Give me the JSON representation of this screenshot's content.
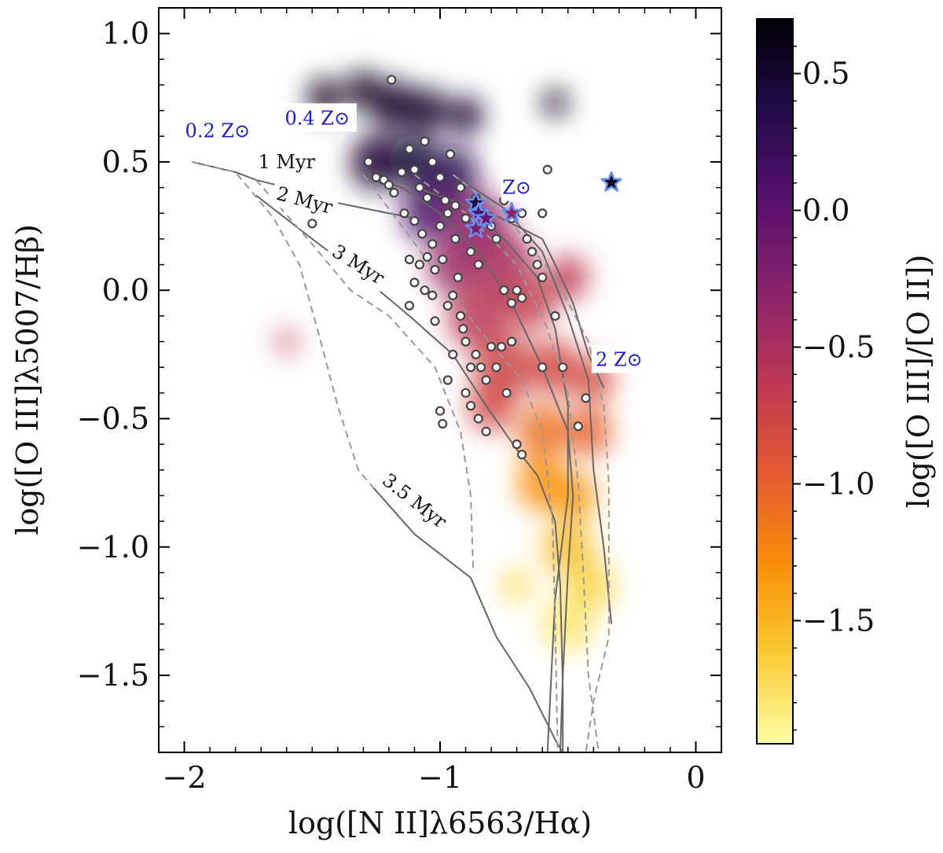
{
  "chart_data": {
    "type": "scatter",
    "title": "",
    "xlabel": "log([N II]λ6563/Hα)",
    "ylabel": "log([O III]λ5007/Hβ)",
    "xlim": [
      -2.1,
      0.1
    ],
    "ylim": [
      -1.8,
      1.1
    ],
    "x_ticks": [
      -2,
      -1,
      0
    ],
    "x_tick_labels": [
      "−2",
      "−1",
      "0"
    ],
    "y_ticks": [
      -1.5,
      -1.0,
      -0.5,
      0.0,
      0.5,
      1.0
    ],
    "y_tick_labels": [
      "−1.5",
      "−1.0",
      "−0.5",
      "0.0",
      "0.5",
      "1.0"
    ],
    "colorbar": {
      "label": "log([O III]/[O II])",
      "range": [
        -1.95,
        0.7
      ],
      "ticks": [
        -1.5,
        -1.0,
        -0.5,
        0.0,
        0.5
      ],
      "tick_labels": [
        "−1.5",
        "−1.0",
        "−0.5",
        "0.0",
        "0.5"
      ],
      "colormap": [
        "#fcfea4",
        "#f9c932",
        "#f98e09",
        "#e35932",
        "#bc3754",
        "#89226a",
        "#57106e",
        "#210c4a",
        "#000004"
      ]
    },
    "density_blobs": [
      {
        "x": -1.45,
        "y": 0.75,
        "c": 0.6,
        "r": 0.07
      },
      {
        "x": -1.3,
        "y": 0.78,
        "c": 0.6,
        "r": 0.07
      },
      {
        "x": -1.18,
        "y": 0.72,
        "c": 0.55,
        "r": 0.09
      },
      {
        "x": -1.05,
        "y": 0.7,
        "c": 0.55,
        "r": 0.08
      },
      {
        "x": -0.9,
        "y": 0.68,
        "c": 0.5,
        "r": 0.07
      },
      {
        "x": -0.55,
        "y": 0.73,
        "c": 0.6,
        "r": 0.05
      },
      {
        "x": -1.25,
        "y": 0.5,
        "c": 0.5,
        "r": 0.1
      },
      {
        "x": -1.1,
        "y": 0.5,
        "c": 0.45,
        "r": 0.1
      },
      {
        "x": -0.95,
        "y": 0.45,
        "c": 0.3,
        "r": 0.1
      },
      {
        "x": -1.05,
        "y": 0.3,
        "c": 0.1,
        "r": 0.1
      },
      {
        "x": -0.85,
        "y": 0.25,
        "c": -0.3,
        "r": 0.12
      },
      {
        "x": -0.75,
        "y": 0.1,
        "c": -0.5,
        "r": 0.12
      },
      {
        "x": -0.95,
        "y": 0.1,
        "c": -0.4,
        "r": 0.1
      },
      {
        "x": -0.85,
        "y": -0.1,
        "c": -0.6,
        "r": 0.12
      },
      {
        "x": -0.65,
        "y": -0.05,
        "c": -0.7,
        "r": 0.1
      },
      {
        "x": -0.5,
        "y": 0.05,
        "c": -0.65,
        "r": 0.08
      },
      {
        "x": -0.75,
        "y": -0.3,
        "c": -0.75,
        "r": 0.12
      },
      {
        "x": -0.55,
        "y": -0.3,
        "c": -0.8,
        "r": 0.1
      },
      {
        "x": -0.4,
        "y": -0.35,
        "c": -0.85,
        "r": 0.08
      },
      {
        "x": -0.8,
        "y": -0.45,
        "c": -0.8,
        "r": 0.09
      },
      {
        "x": -0.6,
        "y": -0.55,
        "c": -1.1,
        "r": 0.1
      },
      {
        "x": -0.42,
        "y": -0.55,
        "c": -1.0,
        "r": 0.09
      },
      {
        "x": -0.6,
        "y": -0.75,
        "c": -1.3,
        "r": 0.1
      },
      {
        "x": -0.48,
        "y": -0.8,
        "c": -1.35,
        "r": 0.09
      },
      {
        "x": -0.5,
        "y": -1.0,
        "c": -1.55,
        "r": 0.1
      },
      {
        "x": -0.42,
        "y": -1.15,
        "c": -1.7,
        "r": 0.1
      },
      {
        "x": -0.5,
        "y": -1.3,
        "c": -1.8,
        "r": 0.1
      },
      {
        "x": -0.7,
        "y": -1.15,
        "c": -1.75,
        "r": 0.06
      },
      {
        "x": -1.6,
        "y": -0.2,
        "c": -0.65,
        "r": 0.04
      }
    ],
    "galaxies": [
      {
        "x": -1.19,
        "y": 0.82
      },
      {
        "x": -1.28,
        "y": 0.5
      },
      {
        "x": -1.25,
        "y": 0.44
      },
      {
        "x": -1.22,
        "y": 0.43
      },
      {
        "x": -1.2,
        "y": 0.41
      },
      {
        "x": -1.18,
        "y": 0.38
      },
      {
        "x": -1.15,
        "y": 0.46
      },
      {
        "x": -1.12,
        "y": 0.55
      },
      {
        "x": -1.1,
        "y": 0.47
      },
      {
        "x": -1.08,
        "y": 0.4
      },
      {
        "x": -1.06,
        "y": 0.58
      },
      {
        "x": -1.05,
        "y": 0.36
      },
      {
        "x": -1.03,
        "y": 0.5
      },
      {
        "x": -1.0,
        "y": 0.44
      },
      {
        "x": -0.98,
        "y": 0.35
      },
      {
        "x": -0.96,
        "y": 0.53
      },
      {
        "x": -1.14,
        "y": 0.3
      },
      {
        "x": -1.1,
        "y": 0.27
      },
      {
        "x": -1.07,
        "y": 0.22
      },
      {
        "x": -1.03,
        "y": 0.18
      },
      {
        "x": -1.0,
        "y": 0.25
      },
      {
        "x": -0.97,
        "y": 0.3
      },
      {
        "x": -0.94,
        "y": 0.2
      },
      {
        "x": -0.92,
        "y": 0.4
      },
      {
        "x": -1.12,
        "y": 0.12
      },
      {
        "x": -1.08,
        "y": 0.1
      },
      {
        "x": -1.05,
        "y": 0.13
      },
      {
        "x": -1.02,
        "y": 0.08
      },
      {
        "x": -0.99,
        "y": 0.12
      },
      {
        "x": -1.1,
        "y": 0.03
      },
      {
        "x": -1.06,
        "y": 0.0
      },
      {
        "x": -1.03,
        "y": -0.02
      },
      {
        "x": -1.5,
        "y": 0.26
      },
      {
        "x": -1.12,
        "y": -0.06
      },
      {
        "x": -1.02,
        "y": -0.12
      },
      {
        "x": -0.97,
        "y": -0.06
      },
      {
        "x": -0.95,
        "y": -0.02
      },
      {
        "x": -0.93,
        "y": 0.05
      },
      {
        "x": -0.92,
        "y": -0.1
      },
      {
        "x": -0.91,
        "y": -0.15
      },
      {
        "x": -0.9,
        "y": -0.2
      },
      {
        "x": -0.88,
        "y": 0.15
      },
      {
        "x": -0.85,
        "y": 0.1
      },
      {
        "x": -0.8,
        "y": 0.25
      },
      {
        "x": -0.78,
        "y": 0.2
      },
      {
        "x": -0.75,
        "y": 0.35
      },
      {
        "x": -0.72,
        "y": 0.28
      },
      {
        "x": -0.7,
        "y": 0.4
      },
      {
        "x": -0.68,
        "y": 0.3
      },
      {
        "x": -0.66,
        "y": 0.2
      },
      {
        "x": -0.64,
        "y": 0.15
      },
      {
        "x": -0.62,
        "y": 0.1
      },
      {
        "x": -0.6,
        "y": 0.05
      },
      {
        "x": -0.58,
        "y": 0.47
      },
      {
        "x": -0.75,
        "y": 0.0
      },
      {
        "x": -0.72,
        "y": -0.05
      },
      {
        "x": -0.7,
        "y": 0.0
      },
      {
        "x": -0.68,
        "y": -0.03
      },
      {
        "x": -0.88,
        "y": -0.3
      },
      {
        "x": -0.86,
        "y": -0.25
      },
      {
        "x": -0.84,
        "y": -0.3
      },
      {
        "x": -0.82,
        "y": -0.35
      },
      {
        "x": -0.8,
        "y": -0.22
      },
      {
        "x": -0.78,
        "y": -0.3
      },
      {
        "x": -0.76,
        "y": -0.22
      },
      {
        "x": -0.74,
        "y": -0.4
      },
      {
        "x": -0.72,
        "y": -0.2
      },
      {
        "x": -0.9,
        "y": -0.4
      },
      {
        "x": -0.88,
        "y": -0.45
      },
      {
        "x": -0.85,
        "y": -0.5
      },
      {
        "x": -0.82,
        "y": -0.55
      },
      {
        "x": -1.0,
        "y": -0.47
      },
      {
        "x": -0.99,
        "y": -0.52
      },
      {
        "x": -0.7,
        "y": -0.6
      },
      {
        "x": -0.68,
        "y": -0.64
      },
      {
        "x": -0.6,
        "y": -0.3
      },
      {
        "x": -0.52,
        "y": -0.3
      },
      {
        "x": -0.46,
        "y": -0.53
      },
      {
        "x": -0.43,
        "y": -0.42
      },
      {
        "x": -0.55,
        "y": -0.1
      },
      {
        "x": -0.94,
        "y": 0.33
      },
      {
        "x": -0.9,
        "y": 0.28
      },
      {
        "x": -0.86,
        "y": 0.36
      },
      {
        "x": -0.83,
        "y": 0.3
      },
      {
        "x": -0.6,
        "y": 0.3
      },
      {
        "x": -0.95,
        "y": -0.25
      },
      {
        "x": -0.97,
        "y": -0.35
      }
    ],
    "stars": [
      {
        "x": -0.86,
        "y": 0.34,
        "c": 0.45
      },
      {
        "x": -0.85,
        "y": 0.3,
        "c": 0.1
      },
      {
        "x": -0.82,
        "y": 0.28,
        "c": -0.1
      },
      {
        "x": -0.86,
        "y": 0.24,
        "c": -0.2
      },
      {
        "x": -0.72,
        "y": 0.3,
        "c": -0.3
      },
      {
        "x": -0.33,
        "y": 0.42,
        "c": 0.55
      }
    ],
    "model_solid_lines": [
      [
        [
          -1.97,
          0.5
        ],
        [
          -1.8,
          0.46
        ],
        [
          -1.72,
          0.43
        ],
        [
          -1.6,
          0.4
        ],
        [
          -1.5,
          0.38
        ],
        [
          -1.4,
          0.34
        ],
        [
          -1.3,
          0.32
        ],
        [
          -1.2,
          0.3
        ],
        [
          -1.1,
          0.28
        ]
      ],
      [
        [
          -1.72,
          0.37
        ],
        [
          -1.5,
          0.2
        ],
        [
          -1.3,
          0.05
        ],
        [
          -1.12,
          -0.1
        ],
        [
          -0.95,
          -0.25
        ],
        [
          -0.82,
          -0.45
        ],
        [
          -0.7,
          -0.62
        ],
        [
          -0.62,
          -0.72
        ],
        [
          -0.55,
          -0.9
        ],
        [
          -0.53,
          -1.15
        ],
        [
          -0.52,
          -1.55
        ],
        [
          -0.52,
          -1.8
        ]
      ],
      [
        [
          -1.3,
          0.45
        ],
        [
          -1.15,
          0.4
        ],
        [
          -1.0,
          0.3
        ],
        [
          -0.85,
          0.15
        ],
        [
          -0.72,
          -0.05
        ],
        [
          -0.6,
          -0.3
        ],
        [
          -0.5,
          -0.55
        ],
        [
          -0.48,
          -0.8
        ],
        [
          -0.5,
          -1.1
        ],
        [
          -0.52,
          -1.5
        ],
        [
          -0.53,
          -1.8
        ]
      ],
      [
        [
          -1.15,
          0.42
        ],
        [
          -0.9,
          0.33
        ],
        [
          -0.75,
          0.2
        ],
        [
          -0.62,
          0.05
        ],
        [
          -0.55,
          -0.15
        ],
        [
          -0.5,
          -0.45
        ],
        [
          -0.5,
          -0.8
        ],
        [
          -0.55,
          -1.2
        ],
        [
          -0.58,
          -1.8
        ]
      ],
      [
        [
          -0.95,
          0.45
        ],
        [
          -0.75,
          0.32
        ],
        [
          -0.6,
          0.15
        ],
        [
          -0.5,
          -0.1
        ],
        [
          -0.42,
          -0.35
        ],
        [
          -0.4,
          -0.7
        ],
        [
          -0.36,
          -1.0
        ],
        [
          -0.33,
          -1.3
        ]
      ],
      [
        [
          -1.26,
          -0.77
        ],
        [
          -1.1,
          -0.95
        ],
        [
          -0.88,
          -1.12
        ],
        [
          -0.78,
          -1.35
        ],
        [
          -0.65,
          -1.55
        ],
        [
          -0.55,
          -1.75
        ],
        [
          -0.52,
          -1.8
        ]
      ],
      [
        [
          -0.86,
          0.33
        ],
        [
          -0.7,
          0.25
        ],
        [
          -0.6,
          0.2
        ],
        [
          -0.55,
          0.1
        ],
        [
          -0.48,
          -0.05
        ],
        [
          -0.42,
          -0.25
        ],
        [
          -0.36,
          -0.38
        ]
      ]
    ],
    "model_dashed_lines": [
      [
        [
          -1.97,
          0.5
        ],
        [
          -1.8,
          0.46
        ],
        [
          -1.65,
          0.28
        ],
        [
          -1.55,
          0.1
        ],
        [
          -1.48,
          -0.15
        ],
        [
          -1.4,
          -0.45
        ],
        [
          -1.32,
          -0.7
        ],
        [
          -1.26,
          -0.77
        ]
      ],
      [
        [
          -1.72,
          0.43
        ],
        [
          -1.5,
          0.18
        ],
        [
          -1.35,
          0.0
        ],
        [
          -1.2,
          -0.1
        ],
        [
          -1.02,
          -0.3
        ],
        [
          -0.92,
          -0.55
        ],
        [
          -0.88,
          -0.8
        ],
        [
          -0.87,
          -1.1
        ]
      ],
      [
        [
          -1.3,
          0.45
        ],
        [
          -1.15,
          0.25
        ],
        [
          -1.0,
          0.05
        ],
        [
          -0.85,
          -0.15
        ],
        [
          -0.68,
          -0.35
        ],
        [
          -0.6,
          -0.55
        ],
        [
          -0.56,
          -0.9
        ],
        [
          -0.55,
          -1.3
        ],
        [
          -0.54,
          -1.8
        ]
      ],
      [
        [
          -1.1,
          0.45
        ],
        [
          -0.9,
          0.3
        ],
        [
          -0.7,
          0.1
        ],
        [
          -0.58,
          -0.15
        ],
        [
          -0.5,
          -0.4
        ],
        [
          -0.46,
          -0.75
        ],
        [
          -0.44,
          -1.1
        ],
        [
          -0.42,
          -1.5
        ],
        [
          -0.38,
          -1.8
        ]
      ],
      [
        [
          -0.95,
          0.45
        ],
        [
          -0.75,
          0.3
        ],
        [
          -0.55,
          0.05
        ],
        [
          -0.42,
          -0.2
        ],
        [
          -0.36,
          -0.45
        ],
        [
          -0.34,
          -0.75
        ],
        [
          -0.34,
          -1.1
        ],
        [
          -0.34,
          -1.35
        ],
        [
          -0.4,
          -1.6
        ],
        [
          -0.43,
          -1.8
        ]
      ]
    ],
    "age_labels": [
      {
        "text": "1 Myr",
        "x": -1.6,
        "y": 0.5,
        "rotate": 0
      },
      {
        "text": "2 Myr",
        "x": -1.53,
        "y": 0.35,
        "rotate": 15
      },
      {
        "text": "3 Myr",
        "x": -1.32,
        "y": 0.1,
        "rotate": 32
      },
      {
        "text": "3.5 Myr",
        "x": -1.1,
        "y": -0.82,
        "rotate": 38
      }
    ],
    "metallicity_labels": [
      {
        "text": "0.2 Z⊙",
        "x": -1.87,
        "y": 0.62
      },
      {
        "text": "0.4 Z⊙",
        "x": -1.48,
        "y": 0.67
      },
      {
        "text": "Z⊙",
        "x": -0.7,
        "y": 0.4
      },
      {
        "text": "2 Z⊙",
        "x": -0.3,
        "y": -0.27
      }
    ]
  }
}
